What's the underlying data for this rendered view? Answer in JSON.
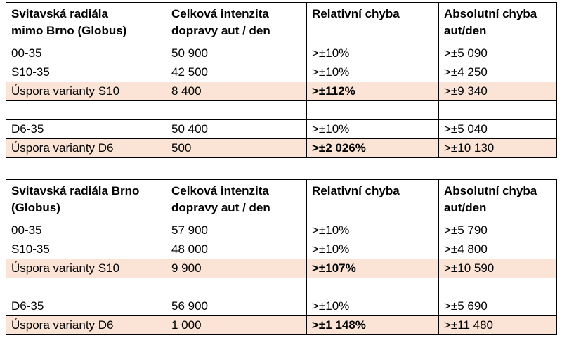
{
  "tables": [
    {
      "header": {
        "c1": "Svitavská radiála\nmimo Brno (Globus)",
        "c2": "Celková intenzita\ndopravy aut / den",
        "c3": "Relativní chyba",
        "c4": "Absolutní chyba\naut/den"
      },
      "rows": [
        {
          "name": "00-35",
          "intensity": "50 900",
          "rel": ">±10%",
          "abs": ">±5 090"
        },
        {
          "name": "S10-35",
          "intensity": "42 500",
          "rel": ">±10%",
          "abs": ">±4 250"
        },
        {
          "name": "Úspora varianty S10",
          "intensity": "8 400",
          "rel": ">±112%",
          "abs": ">±9 340"
        },
        {
          "name": "",
          "intensity": "",
          "rel": "",
          "abs": ""
        },
        {
          "name": "D6-35",
          "intensity": "50 400",
          "rel": ">±10%",
          "abs": ">±5 040"
        },
        {
          "name": "Úspora varianty D6",
          "intensity": "500",
          "rel": ">±2 026%",
          "abs": ">±10 130"
        }
      ]
    },
    {
      "header": {
        "c1": "Svitavská radiála Brno\n(Globus)",
        "c2": "Celková intenzita\ndopravy aut / den",
        "c3": "Relativní chyba",
        "c4": "Absolutní chyba\naut/den"
      },
      "rows": [
        {
          "name": "00-35",
          "intensity": "57 900",
          "rel": ">±10%",
          "abs": ">±5 790"
        },
        {
          "name": "S10-35",
          "intensity": "48 000",
          "rel": ">±10%",
          "abs": ">±4 800"
        },
        {
          "name": "Úspora varianty S10",
          "intensity": "9 900",
          "rel": ">±107%",
          "abs": ">±10 590"
        },
        {
          "name": "",
          "intensity": "",
          "rel": "",
          "abs": ""
        },
        {
          "name": "D6-35",
          "intensity": "56 900",
          "rel": ">±10%",
          "abs": ">±5 690"
        },
        {
          "name": "Úspora varianty D6",
          "intensity": "1 000",
          "rel": ">±1 148%",
          "abs": ">±11 480"
        }
      ]
    }
  ],
  "colors": {
    "highlight_row": "#fbe4d5",
    "border": "#000000"
  }
}
